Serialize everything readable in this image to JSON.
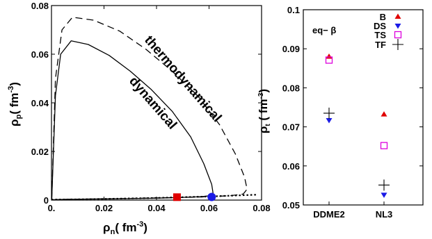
{
  "chart_data": [
    {
      "type": "line",
      "xlabel": "ρn( fm⁻³)",
      "ylabel": "ρp( fm⁻³)",
      "xlim": [
        0,
        0.08
      ],
      "ylim": [
        0,
        0.08
      ],
      "xticks": [
        "0.",
        "0.02",
        "0.04",
        "0.06",
        "0.08"
      ],
      "yticks": [
        "0",
        "0.02",
        "0.04",
        "0.06",
        "0.08"
      ],
      "annotations": [
        "thermodynamical",
        "dynamical"
      ],
      "series": [
        {
          "style": "dashed",
          "x": [
            0.0001,
            0.0015,
            0.004,
            0.008,
            0.016,
            0.026,
            0.036,
            0.046,
            0.056,
            0.064,
            0.07,
            0.0735,
            0.0745,
            0.073,
            0.068,
            0.06,
            0.05,
            0.04,
            0.03,
            0.02,
            0.012,
            0.006,
            0.002,
            0.0005
          ],
          "y": [
            0.0005,
            0.05,
            0.07,
            0.0752,
            0.074,
            0.0695,
            0.062,
            0.053,
            0.0425,
            0.031,
            0.019,
            0.0095,
            0.0045,
            0.0025,
            0.0018,
            0.0014,
            0.0011,
            0.0009,
            0.0007,
            0.0005,
            0.0004,
            0.0003,
            0.0002,
            0.0001
          ]
        },
        {
          "style": "solid",
          "x": [
            0.0001,
            0.0015,
            0.0035,
            0.0075,
            0.014,
            0.022,
            0.03,
            0.038,
            0.046,
            0.053,
            0.058,
            0.061,
            0.0615,
            0.0605,
            0.057,
            0.05,
            0.04,
            0.03,
            0.02,
            0.012,
            0.006,
            0.002,
            0.0005
          ],
          "y": [
            0.0005,
            0.043,
            0.06,
            0.0655,
            0.064,
            0.0595,
            0.053,
            0.0455,
            0.0365,
            0.026,
            0.015,
            0.0065,
            0.003,
            0.0018,
            0.0014,
            0.0011,
            0.0008,
            0.0006,
            0.0005,
            0.0004,
            0.0003,
            0.0002,
            0.0001
          ]
        },
        {
          "style": "dotted",
          "x": [
            0,
            0.01,
            0.02,
            0.03,
            0.04,
            0.05,
            0.06,
            0.07,
            0.078
          ],
          "y": [
            0.0002,
            0.0003,
            0.0005,
            0.0007,
            0.0009,
            0.0012,
            0.0015,
            0.0019,
            0.0022
          ]
        }
      ],
      "markers": [
        {
          "shape": "square",
          "color": "#e00000",
          "x": 0.0478,
          "y": 0.0012
        },
        {
          "shape": "circle",
          "color": "#1a1ae6",
          "x": 0.061,
          "y": 0.0013
        }
      ]
    },
    {
      "type": "scatter",
      "xlabel": "",
      "ylabel": "ρt ( fm⁻³)",
      "ylim": [
        0.05,
        0.1
      ],
      "yticks": [
        "0.05",
        "0.06",
        "0.07",
        "0.08",
        "0.09",
        "0.1"
      ],
      "categories": [
        "DDME2",
        "NL3"
      ],
      "annotation": "eq− β",
      "series": [
        {
          "name": "B",
          "color": "#e00000",
          "marker": "triangle-up",
          "values": [
            0.088,
            0.0732
          ]
        },
        {
          "name": "DS",
          "color": "#1a1ae6",
          "marker": "triangle-down",
          "values": [
            0.0717,
            0.0526
          ]
        },
        {
          "name": "TS",
          "color": "#dd00dd",
          "marker": "open-square",
          "values": [
            0.0871,
            0.0652
          ]
        },
        {
          "name": "TF",
          "color": "#000000",
          "marker": "plus",
          "values": [
            0.0735,
            0.0551
          ]
        }
      ]
    }
  ]
}
